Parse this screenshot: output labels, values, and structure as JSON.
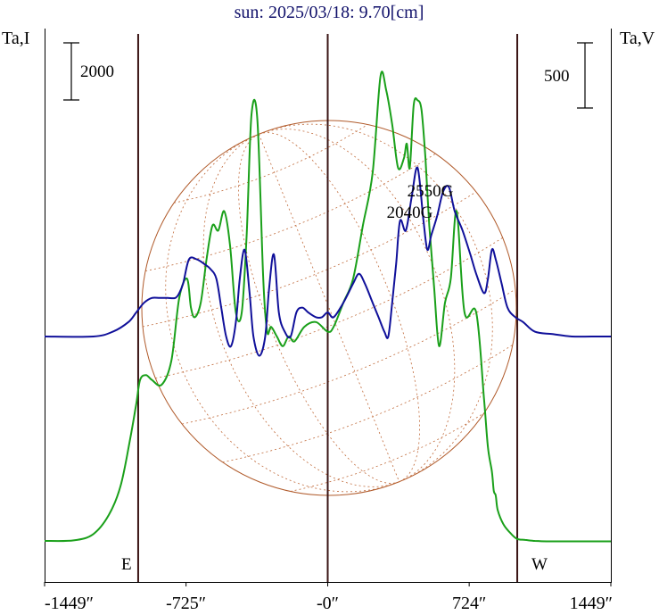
{
  "chart_data": {
    "type": "line",
    "title": "sun: 2025/03/18: 9.70[cm]",
    "left_axis_label": "Ta,I",
    "right_axis_label": "Ta,V",
    "left_scale_bar": "2000",
    "right_scale_bar": "500",
    "x_ticks": [
      {
        "value": -1449,
        "label": "-1449″"
      },
      {
        "value": -725,
        "label": "-725″"
      },
      {
        "value": 0,
        "label": "-0″"
      },
      {
        "value": 724,
        "label": "724″"
      },
      {
        "value": 1449,
        "label": "1449″"
      }
    ],
    "xlim": [
      -1449,
      1449
    ],
    "ylim": [
      0,
      1
    ],
    "limb_markers": [
      {
        "value": -970,
        "label": "E"
      },
      {
        "value": 0,
        "label": ""
      },
      {
        "value": 970,
        "label": "W"
      }
    ],
    "annotations": [
      {
        "text": "2550G",
        "x": 525,
        "y": 0.741
      },
      {
        "text": "2040G",
        "x": 420,
        "y": 0.696
      }
    ],
    "colors": {
      "stokes_i": "#1aa01a",
      "stokes_v": "#10109a",
      "title": "#10106a",
      "marker": "#3a1414",
      "disk": "#b05a2a"
    },
    "series": [
      {
        "key": "stokes_i",
        "x": [
          -1449,
          -1300,
          -1200,
          -1120,
          -1060,
          -1010,
          -980,
          -960,
          -930,
          -900,
          -850,
          -800,
          -760,
          -720,
          -700,
          -680,
          -650,
          -620,
          -590,
          -560,
          -530,
          -500,
          -470,
          -440,
          -415,
          -390,
          -360,
          -330,
          -310,
          -290,
          -260,
          -230,
          -200,
          -170,
          -120,
          -60,
          0,
          30,
          80,
          130,
          180,
          230,
          270,
          300,
          330,
          360,
          390,
          405,
          420,
          440,
          460,
          480,
          500,
          520,
          545,
          570,
          600,
          630,
          660,
          700,
          760,
          800,
          820,
          840,
          850,
          860,
          870,
          900,
          940,
          970,
          1010,
          1060,
          1120,
          1200,
          1300,
          1449
        ],
        "y": [
          0.026,
          0.027,
          0.04,
          0.08,
          0.14,
          0.24,
          0.31,
          0.36,
          0.37,
          0.36,
          0.35,
          0.4,
          0.53,
          0.57,
          0.51,
          0.49,
          0.52,
          0.61,
          0.68,
          0.67,
          0.71,
          0.64,
          0.5,
          0.5,
          0.66,
          0.91,
          0.9,
          0.57,
          0.46,
          0.47,
          0.45,
          0.43,
          0.45,
          0.44,
          0.47,
          0.48,
          0.46,
          0.47,
          0.52,
          0.57,
          0.68,
          0.79,
          0.99,
          0.96,
          0.89,
          0.8,
          0.82,
          0.85,
          0.8,
          0.93,
          0.94,
          0.92,
          0.82,
          0.68,
          0.55,
          0.43,
          0.52,
          0.57,
          0.71,
          0.5,
          0.5,
          0.32,
          0.22,
          0.17,
          0.13,
          0.12,
          0.09,
          0.06,
          0.04,
          0.03,
          0.028,
          0.026,
          0.025,
          0.025,
          0.025,
          0.025
        ]
      },
      {
        "key": "stokes_v",
        "x": [
          -1449,
          -1200,
          -1100,
          -1020,
          -980,
          -940,
          -900,
          -860,
          -820,
          -780,
          -760,
          -740,
          -710,
          -670,
          -630,
          -600,
          -570,
          -545,
          -520,
          -495,
          -470,
          -450,
          -425,
          -400,
          -380,
          -350,
          -320,
          -300,
          -275,
          -250,
          -220,
          -190,
          -160,
          -130,
          -100,
          -60,
          -30,
          0,
          30,
          80,
          130,
          160,
          190,
          230,
          260,
          290,
          310,
          330,
          350,
          370,
          400,
          430,
          460,
          490,
          510,
          530,
          560,
          590,
          620,
          650,
          690,
          730,
          760,
          800,
          820,
          840,
          860,
          890,
          920,
          960,
          1000,
          1060,
          1150,
          1250,
          1350,
          1449
        ],
        "y": [
          0.45,
          0.45,
          0.46,
          0.48,
          0.5,
          0.52,
          0.53,
          0.53,
          0.53,
          0.53,
          0.54,
          0.56,
          0.61,
          0.61,
          0.6,
          0.59,
          0.57,
          0.51,
          0.45,
          0.43,
          0.48,
          0.57,
          0.63,
          0.54,
          0.45,
          0.41,
          0.45,
          0.55,
          0.62,
          0.5,
          0.46,
          0.45,
          0.5,
          0.51,
          0.5,
          0.49,
          0.49,
          0.5,
          0.49,
          0.52,
          0.56,
          0.58,
          0.56,
          0.52,
          0.49,
          0.46,
          0.45,
          0.52,
          0.6,
          0.69,
          0.67,
          0.74,
          0.8,
          0.69,
          0.63,
          0.66,
          0.7,
          0.75,
          0.76,
          0.71,
          0.67,
          0.62,
          0.58,
          0.54,
          0.57,
          0.63,
          0.61,
          0.56,
          0.51,
          0.49,
          0.48,
          0.46,
          0.455,
          0.45,
          0.45,
          0.45
        ]
      }
    ],
    "grid": false
  }
}
